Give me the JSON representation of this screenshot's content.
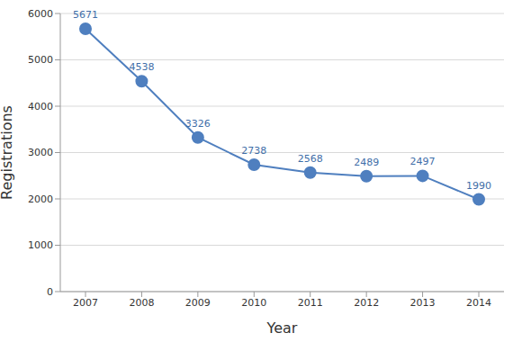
{
  "chart_data": {
    "type": "line",
    "x_label": "Year",
    "y_label": "Registrations",
    "categories": [
      "2007",
      "2008",
      "2009",
      "2010",
      "2011",
      "2012",
      "2013",
      "2014"
    ],
    "values": [
      5671,
      4538,
      3326,
      2738,
      2568,
      2489,
      2497,
      1990
    ],
    "color": "#4f7fbf",
    "ylim": [
      0,
      6000
    ],
    "yticks": [
      0,
      1000,
      2000,
      3000,
      4000,
      5000,
      6000
    ],
    "grid": true,
    "data_labels": true,
    "marker": "circle",
    "line_style": "solid"
  }
}
